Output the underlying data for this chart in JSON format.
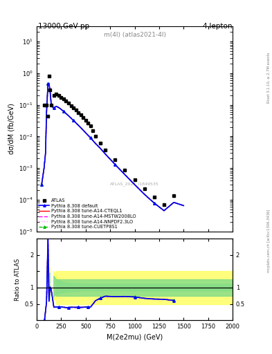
{
  "title_top": "13000 GeV pp",
  "title_right": "4-lepton",
  "plot_label": "m(4l) (atlas2021-4l)",
  "watermark": "ATLAS_2021_I1849535",
  "xlabel": "M(2e2mu) (GeV)",
  "ylabel_main": "dσ/dM (fb/GeV)",
  "ylabel_ratio": "Ratio to ATLAS",
  "right_label_main": "Rivet 3.1.10, ≥ 2.7M events",
  "right_label_ratio": "mcplots.cern.ch [arXiv:1306.3436]",
  "xlim": [
    0,
    2000
  ],
  "ylim_main": [
    1e-05,
    30
  ],
  "ylim_ratio": [
    0.0,
    2.5
  ],
  "color_default": "#0000ff",
  "color_cteq": "#ff0000",
  "color_mstw": "#ff00ff",
  "color_nnpdf": "#ff99ff",
  "color_cuetp": "#00bb00",
  "color_data": "#000000",
  "legend_entries": [
    "ATLAS",
    "Pythia 8.308 default",
    "Pythia 8.308 tune-A14-CTEQL1",
    "Pythia 8.308 tune-A14-MSTW2008LO",
    "Pythia 8.308 tune-A14-NNPDF2.3LO",
    "Pythia 8.308 tune-CUETP8S1"
  ]
}
